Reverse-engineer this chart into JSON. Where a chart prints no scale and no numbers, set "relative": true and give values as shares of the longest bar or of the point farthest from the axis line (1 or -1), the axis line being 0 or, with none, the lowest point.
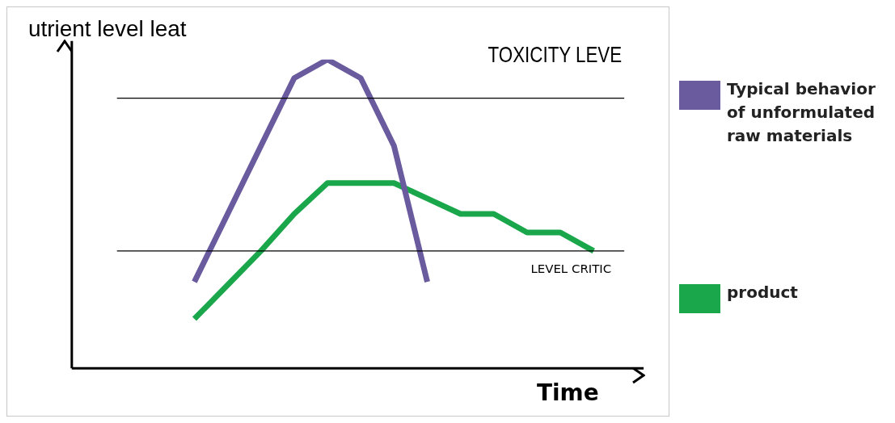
{
  "chart_data": {
    "type": "line",
    "relative": true,
    "ylabel": "utrient level leat",
    "xlabel": "Time",
    "categories": [
      null,
      null,
      null,
      null,
      null,
      null,
      null,
      null,
      null,
      null,
      null,
      null,
      null
    ],
    "series": [
      {
        "name": "Typical behavior of unformulated raw materials",
        "color": "#6a5a9e",
        "values": [
          0.28,
          0.5,
          0.72,
          0.94,
          1,
          0.94,
          0.72,
          0.28,
          null,
          null,
          null,
          null,
          null
        ]
      },
      {
        "name": "product",
        "color": "#1aa64a",
        "values": [
          0.16,
          0.27,
          0.38,
          0.5,
          0.6,
          0.6,
          0.6,
          0.55,
          0.5,
          0.5,
          0.44,
          0.44,
          0.38
        ]
      }
    ],
    "ref_lines": [
      {
        "axis": "y",
        "value": 0.875,
        "label": "TOXICITY LEVE",
        "color": "#000000"
      },
      {
        "axis": "y",
        "value": 0.38,
        "label": "LEVEL CRITIC",
        "color": "#000000"
      }
    ],
    "legend": "right",
    "marker": "none",
    "line_style": "solid",
    "grid": false
  }
}
